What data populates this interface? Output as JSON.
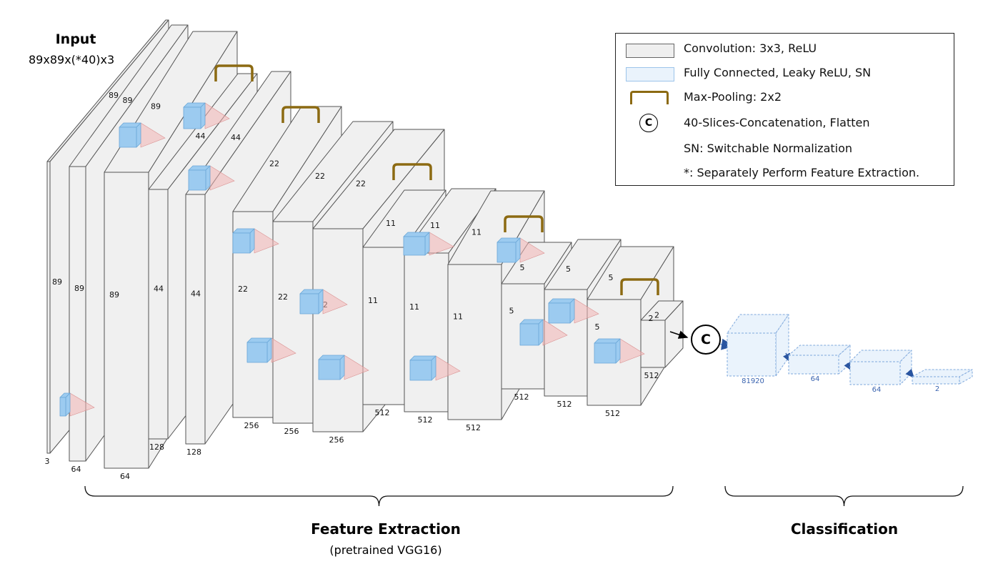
{
  "input": {
    "title": "Input",
    "shape": "89x89x(*40)x3"
  },
  "legend": {
    "items": [
      {
        "icon": "conv-block",
        "label": "Convolution: 3x3, ReLU"
      },
      {
        "icon": "fc-block",
        "label": "Fully Connected, Leaky ReLU, SN"
      },
      {
        "icon": "pool-bracket",
        "label": "Max-Pooling: 2x2"
      },
      {
        "icon": "concat-circle",
        "symbol": "C",
        "label": "40-Slices-Concatenation, Flatten"
      },
      {
        "label": "SN: Switchable Normalization"
      },
      {
        "label": "*: Separately Perform Feature Extraction."
      }
    ]
  },
  "colors": {
    "conv_face": "#f0f0f0",
    "conv_edge": "#555555",
    "kernel": "#9ccbf0",
    "kernel_edge": "#6aa7d8",
    "cone": "#f2b5b5",
    "pool": "#8c6a12",
    "fc_face": "#eaf3fc",
    "fc_edge": "#7fa8dc",
    "fc_text": "#3a64b0"
  },
  "layers": [
    {
      "depth": "3",
      "h": "89",
      "w": "89"
    },
    {
      "depth": "64",
      "h": "89",
      "w": "89"
    },
    {
      "depth": "64",
      "h": "89",
      "w": "89"
    },
    {
      "depth": "128",
      "h": "44",
      "w": "44"
    },
    {
      "depth": "128",
      "h": "44",
      "w": "44"
    },
    {
      "depth": "256",
      "h": "22",
      "w": "22"
    },
    {
      "depth": "256",
      "h": "22",
      "w": "22"
    },
    {
      "depth": "256",
      "h": "22",
      "w": "22"
    },
    {
      "depth": "512",
      "h": "11",
      "w": "11"
    },
    {
      "depth": "512",
      "h": "11",
      "w": "11"
    },
    {
      "depth": "512",
      "h": "11",
      "w": "11"
    },
    {
      "depth": "512",
      "h": "5",
      "w": "5"
    },
    {
      "depth": "512",
      "h": "5",
      "w": "5"
    },
    {
      "depth": "512",
      "h": "5",
      "w": "5"
    },
    {
      "depth": "512",
      "h": "2",
      "w": "2"
    }
  ],
  "concat_symbol": "C",
  "fc_layers": [
    {
      "units": "81920"
    },
    {
      "units": "64"
    },
    {
      "units": "64"
    },
    {
      "units": "2"
    }
  ],
  "sections": {
    "feature_title": "Feature Extraction",
    "feature_sub": "(pretrained VGG16)",
    "class_title": "Classification"
  }
}
